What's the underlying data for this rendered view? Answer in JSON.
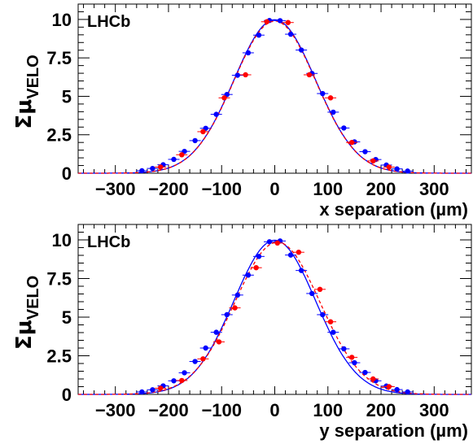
{
  "chart_data": [
    {
      "type": "scatter",
      "title": "",
      "annotation": "LHCb",
      "xlabel": "x separation (µm)",
      "ylabel_symbol": "Σμ",
      "ylabel_subscript": "VELO",
      "xlim": [
        -370,
        370
      ],
      "ylim": [
        0,
        11
      ],
      "xticks": [
        -300,
        -200,
        -100,
        0,
        100,
        200,
        300
      ],
      "xtick_labels": [
        "−300",
        "−200",
        "−100",
        "0",
        "100",
        "200",
        "300"
      ],
      "yticks": [
        0,
        2.5,
        5,
        7.5,
        10
      ],
      "ytick_labels": [
        "0",
        "2.5",
        "5",
        "7.5",
        "10"
      ],
      "grid": false,
      "series": [
        {
          "color": "#0000ff",
          "style": "solid",
          "x": [
            -250,
            -230,
            -210,
            -190,
            -170,
            -150,
            -130,
            -110,
            -90,
            -70,
            -50,
            -30,
            -10,
            10,
            30,
            50,
            70,
            90,
            110,
            130,
            150,
            170,
            190,
            210,
            230,
            250
          ],
          "y": [
            0.16,
            0.31,
            0.55,
            0.9,
            1.42,
            2.12,
            2.92,
            3.83,
            5.12,
            6.37,
            7.83,
            8.98,
            9.93,
            9.92,
            9.04,
            8.01,
            6.49,
            5.18,
            3.97,
            2.94,
            2.04,
            1.4,
            0.89,
            0.53,
            0.28,
            0.14
          ],
          "fit_sigma": 77
        },
        {
          "color": "#ff0000",
          "style": "dashed",
          "x": [
            -215,
            -175,
            -135,
            -95,
            -55,
            -15,
            25,
            65,
            105,
            145,
            185,
            215
          ],
          "y": [
            0.4,
            1.2,
            2.7,
            4.9,
            6.4,
            9.85,
            9.8,
            6.4,
            4.9,
            2.0,
            0.8,
            0.4
          ],
          "fit_sigma": 77
        }
      ]
    },
    {
      "type": "scatter",
      "title": "",
      "annotation": "LHCb",
      "xlabel": "y separation (µm)",
      "ylabel_symbol": "Σμ",
      "ylabel_subscript": "VELO",
      "xlim": [
        -370,
        370
      ],
      "ylim": [
        0,
        11
      ],
      "xticks": [
        -300,
        -200,
        -100,
        0,
        100,
        200,
        300
      ],
      "xtick_labels": [
        "−300",
        "−200",
        "−100",
        "0",
        "100",
        "200",
        "300"
      ],
      "yticks": [
        0,
        2.5,
        5,
        7.5,
        10
      ],
      "ytick_labels": [
        "0",
        "2.5",
        "5",
        "7.5",
        "10"
      ],
      "grid": false,
      "series": [
        {
          "color": "#0000ff",
          "style": "solid",
          "x": [
            -250,
            -230,
            -210,
            -190,
            -170,
            -150,
            -130,
            -110,
            -90,
            -70,
            -50,
            -30,
            -10,
            10,
            30,
            50,
            70,
            90,
            110,
            130,
            150,
            170,
            190,
            210,
            230,
            250
          ],
          "y": [
            0.16,
            0.3,
            0.55,
            0.88,
            1.4,
            2.13,
            3.0,
            4.02,
            5.16,
            6.43,
            7.72,
            8.93,
            9.88,
            9.93,
            9.02,
            8.02,
            6.53,
            5.16,
            4.02,
            2.95,
            2.05,
            1.42,
            0.88,
            0.54,
            0.31,
            0.16
          ],
          "fit_sigma": 77
        },
        {
          "color": "#ff0000",
          "style": "dashed",
          "x": [
            -215,
            -175,
            -135,
            -105,
            -75,
            -35,
            5,
            45,
            85,
            105,
            145,
            185,
            215
          ],
          "y": [
            0.4,
            0.9,
            2.3,
            3.4,
            5.6,
            8.2,
            9.8,
            9.2,
            6.8,
            4.7,
            2.4,
            1.0,
            0.5
          ],
          "fit_sigma": 80,
          "fit_mu": 5
        }
      ]
    }
  ]
}
